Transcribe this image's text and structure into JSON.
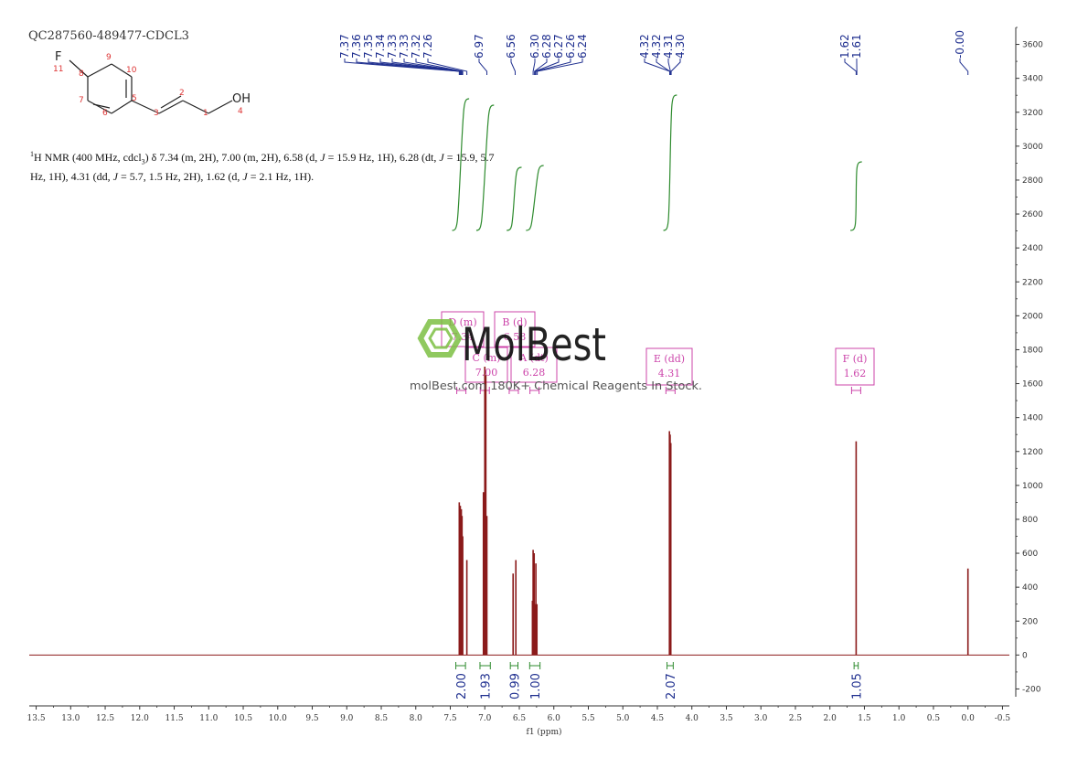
{
  "sample_title": "QC287560-489477-CDCL3",
  "structure": {
    "atoms": [
      "F",
      "11",
      "8",
      "9",
      "10",
      "5",
      "7",
      "6",
      "2",
      "3",
      "1",
      "OH",
      "4"
    ]
  },
  "nmr_description": {
    "nucleus_sup": "1",
    "line1_a": "H NMR (400 MHz, cdcl",
    "line1_sub": "3",
    "line1_b": ") δ 7.34 (m, 2H), 7.00 (m, 2H), 6.58 (d, ",
    "J": "J",
    "line1_c": " = 15.9 Hz, 1H), 6.28 (dt, ",
    "line1_d": " = 15.9, 5.7",
    "line2_a": "Hz, 1H), 4.31 (dd, ",
    "line2_b": " = 5.7, 1.5 Hz, 2H), 1.62 (d, ",
    "line2_c": " = 2.1 Hz, 1H)."
  },
  "watermark": {
    "brand": "MolBest",
    "tagline": "molBest.com 180K+ Chemical Reagents In Stock."
  },
  "colors": {
    "spectrum": "#8b1a1a",
    "peak_labels": "#1f2f8f",
    "integrals": "#2e8b2e",
    "multiplets": "#cc44aa",
    "axis": "#333333",
    "watermark_green": "#7cc043"
  },
  "chart_data": {
    "type": "line",
    "xlabel": "f1 (ppm)",
    "x_range": [
      13.6,
      -0.6
    ],
    "y_range": [
      -300,
      3700
    ],
    "x_ticks": [
      "13.5",
      "13.0",
      "12.5",
      "12.0",
      "11.5",
      "11.0",
      "10.5",
      "10.0",
      "9.5",
      "9.0",
      "8.5",
      "8.0",
      "7.5",
      "7.0",
      "6.5",
      "6.0",
      "5.5",
      "5.0",
      "4.5",
      "4.0",
      "3.5",
      "3.0",
      "2.5",
      "2.0",
      "1.5",
      "1.0",
      "0.5",
      "0.0",
      "-0.5"
    ],
    "y_ticks": [
      "-200",
      "0",
      "200",
      "400",
      "600",
      "800",
      "1000",
      "1200",
      "1400",
      "1600",
      "1800",
      "2000",
      "2200",
      "2400",
      "2600",
      "2800",
      "3000",
      "3200",
      "3400",
      "3600"
    ],
    "peak_labels": [
      "7.37",
      "7.36",
      "7.35",
      "7.34",
      "7.33",
      "7.33",
      "7.32",
      "7.26",
      "6.97",
      "6.56",
      "6.30",
      "6.28",
      "6.27",
      "6.26",
      "6.24",
      "4.32",
      "4.32",
      "4.31",
      "4.30",
      "1.62",
      "1.61",
      "-0.00"
    ],
    "peak_label_positions_ppm": [
      7.37,
      7.36,
      7.35,
      7.34,
      7.33,
      7.33,
      7.32,
      7.26,
      6.97,
      6.56,
      6.3,
      6.28,
      6.27,
      6.26,
      6.24,
      4.32,
      4.32,
      4.31,
      4.3,
      1.62,
      1.61,
      0.0
    ],
    "peaks": [
      {
        "ppm": 7.37,
        "height": 900
      },
      {
        "ppm": 7.355,
        "height": 880
      },
      {
        "ppm": 7.34,
        "height": 860
      },
      {
        "ppm": 7.33,
        "height": 820
      },
      {
        "ppm": 7.32,
        "height": 700
      },
      {
        "ppm": 7.26,
        "height": 560
      },
      {
        "ppm": 7.02,
        "height": 960
      },
      {
        "ppm": 7.0,
        "height": 1700
      },
      {
        "ppm": 6.985,
        "height": 1650
      },
      {
        "ppm": 6.97,
        "height": 820
      },
      {
        "ppm": 6.59,
        "height": 480
      },
      {
        "ppm": 6.55,
        "height": 560
      },
      {
        "ppm": 6.31,
        "height": 320
      },
      {
        "ppm": 6.3,
        "height": 620
      },
      {
        "ppm": 6.285,
        "height": 600
      },
      {
        "ppm": 6.27,
        "height": 300
      },
      {
        "ppm": 6.26,
        "height": 540
      },
      {
        "ppm": 6.245,
        "height": 300
      },
      {
        "ppm": 4.325,
        "height": 1320
      },
      {
        "ppm": 4.315,
        "height": 1300
      },
      {
        "ppm": 4.305,
        "height": 1250
      },
      {
        "ppm": 1.62,
        "height": 1260
      },
      {
        "ppm": 0.0,
        "height": 510
      }
    ],
    "multiplets": [
      {
        "letter": "D (m)",
        "value": "7.34",
        "ppm": 7.34
      },
      {
        "letter": "B (d)",
        "value": "6.58",
        "ppm": 6.58
      },
      {
        "letter": "C (m)",
        "value": "7.00",
        "ppm": 7.0
      },
      {
        "letter": "A (dt)",
        "value": "6.28",
        "ppm": 6.28
      },
      {
        "letter": "E (dd)",
        "value": "4.31",
        "ppm": 4.31
      },
      {
        "letter": "F (d)",
        "value": "1.62",
        "ppm": 1.62
      }
    ],
    "integrals": [
      {
        "label": "2.00",
        "from": 7.42,
        "to": 7.28
      },
      {
        "label": "1.93",
        "from": 7.07,
        "to": 6.92
      },
      {
        "label": "0.99",
        "from": 6.63,
        "to": 6.52
      },
      {
        "label": "1.00",
        "from": 6.35,
        "to": 6.2
      },
      {
        "label": "2.07",
        "from": 4.36,
        "to": 4.27
      },
      {
        "label": "1.05",
        "from": 1.65,
        "to": 1.59
      }
    ]
  }
}
